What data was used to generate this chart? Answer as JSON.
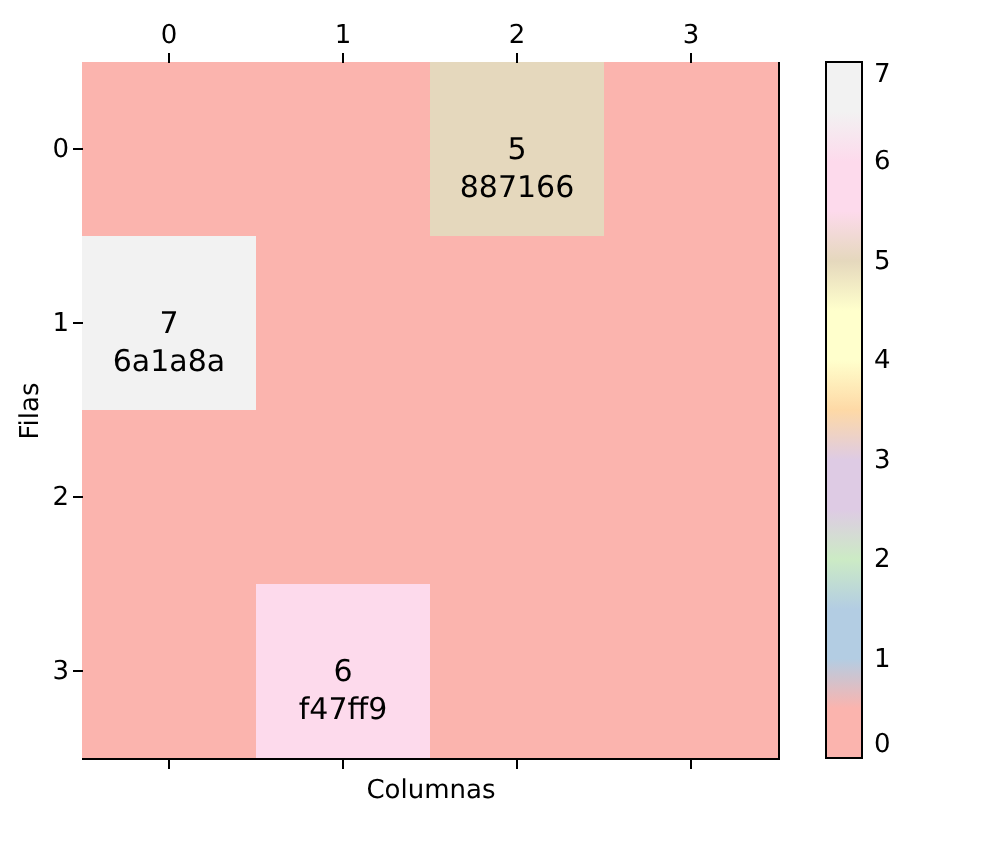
{
  "chart_data": {
    "type": "heatmap",
    "xlabel": "Columnas",
    "ylabel": "Filas",
    "categories": [
      "0",
      "1",
      "2",
      "3"
    ],
    "y_categories": [
      "0",
      "1",
      "2",
      "3"
    ],
    "cells": [
      [
        0,
        0,
        5,
        0
      ],
      [
        7,
        0,
        0,
        0
      ],
      [
        0,
        0,
        0,
        0
      ],
      [
        0,
        6,
        0,
        0
      ]
    ],
    "cell_labels": [
      [
        null,
        null,
        "5\n887166",
        null
      ],
      [
        "7\n6a1a8a",
        null,
        null,
        null
      ],
      [
        null,
        null,
        null,
        null
      ],
      [
        null,
        "6\nf47ff9",
        null,
        null
      ]
    ],
    "clim": [
      0,
      7
    ],
    "cticks": [
      0,
      1,
      2,
      3,
      4,
      5,
      6,
      7
    ]
  }
}
